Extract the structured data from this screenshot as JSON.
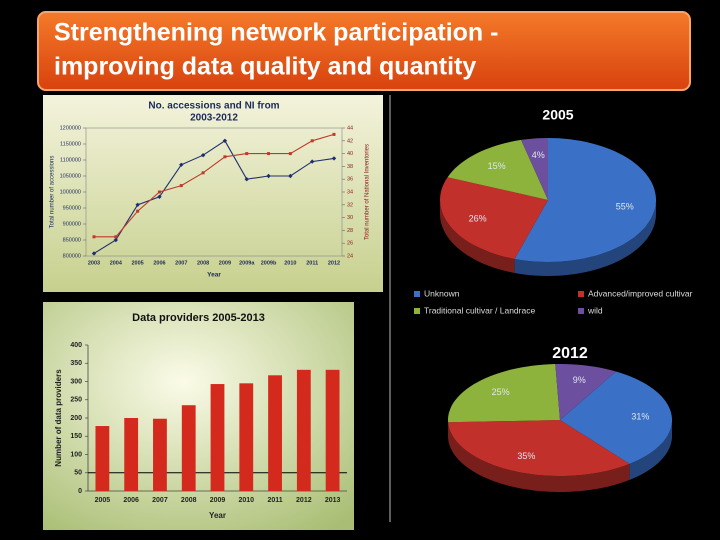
{
  "title": [
    "Strengthening network participation -",
    "improving data quality and quantity"
  ],
  "chart_data": [
    {
      "type": "line",
      "title": [
        "No. accessions and NI from",
        "2003-2012"
      ],
      "x_label": "Year",
      "y_label": "Total number of accessions",
      "y2_label": "Total number of National Inventories",
      "categories": [
        "2003",
        "2004",
        "2005",
        "2006",
        "2007",
        "2008",
        "2009",
        "2009a",
        "2009b",
        "2010",
        "2011",
        "2012"
      ],
      "series": [
        {
          "color": "#1f2f6e",
          "marker": "diamond",
          "values": [
            808000,
            850000,
            960000,
            985000,
            1085000,
            1115000,
            1160000,
            1040000,
            1050000,
            1050000,
            1095000,
            1105000
          ]
        },
        {
          "color": "#c0392b",
          "marker": "square",
          "axis": "y2",
          "values": [
            27,
            27,
            31,
            34,
            35,
            37,
            39.5,
            40,
            40,
            40,
            42,
            43
          ]
        }
      ],
      "ylim": [
        800000,
        1200000
      ],
      "yticks": [
        800000,
        850000,
        900000,
        950000,
        1000000,
        1050000,
        1100000,
        1150000,
        1200000
      ],
      "y2lim": [
        24,
        44
      ],
      "y2ticks": [
        24,
        26,
        28,
        30,
        32,
        34,
        36,
        38,
        40,
        42,
        44
      ]
    },
    {
      "type": "bar",
      "title": "Data providers 2005-2013",
      "x_label": "Year",
      "y_label": "Number of data providers",
      "categories": [
        "2005",
        "2006",
        "2007",
        "2008",
        "2009",
        "2010",
        "2011",
        "2012",
        "2013"
      ],
      "values": [
        178,
        200,
        198,
        235,
        293,
        295,
        317,
        332,
        332
      ],
      "color": "#d42a1e",
      "reference_line": 50,
      "ylim": [
        0,
        400
      ],
      "yticks": [
        0,
        50,
        100,
        150,
        200,
        250,
        300,
        350,
        400
      ]
    },
    {
      "type": "pie",
      "title": "2005",
      "labels": [
        "Unknown",
        "Advanced/improved cultivar",
        "Traditional cultivar / Landrace",
        "wild"
      ],
      "colors": [
        "#3a70c6",
        "#c2302c",
        "#8db33c",
        "#6c4f9e"
      ],
      "values": [
        55,
        26,
        15,
        4
      ],
      "value_labels": [
        "55%",
        "26%",
        "15%",
        "4%"
      ],
      "legend": true
    },
    {
      "type": "pie",
      "title": "2012",
      "colors": [
        "#3a70c6",
        "#c2302c",
        "#8db33c",
        "#6c4f9e"
      ],
      "values": [
        31,
        35,
        25,
        9
      ],
      "value_labels": [
        "31%",
        "35%",
        "25%",
        "9%"
      ]
    }
  ]
}
